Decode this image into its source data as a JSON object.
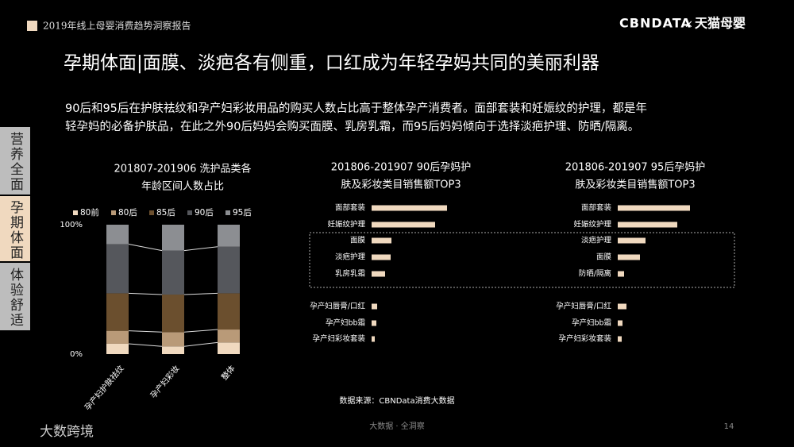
{
  "header": {
    "report": "2019年线上母婴消费趋势洞察报告",
    "brand": "CBNDATA",
    "times": "×",
    "partner": "天猫母婴"
  },
  "headline": "孕期体面|面膜、淡疤各有侧重，口红成为年轻孕妈共同的美丽利器",
  "paragraph": [
    "90后和95后在护肤祛纹和孕产妇彩妆用品的购买人数占比高于整体孕产消费者。面部套装和妊娠纹的护理，都是年",
    "轻孕妈的必备护肤品，在此之外90后妈妈会购买面膜、乳房乳霜，而95后妈妈倾向于选择淡疤护理、防晒/隔离。"
  ],
  "tabs": [
    "营养全面",
    "孕期体面",
    "体验舒适"
  ],
  "source": "数据来源：CBNData消费大数据",
  "footer": {
    "slogan": "大数据 · 全洞察",
    "page": "14",
    "logo": "大数跨境"
  },
  "chart_data": [
    {
      "type": "stacked_bar",
      "title": [
        "201807-201906 洗护品类各",
        "年龄区间人数占比"
      ],
      "categories": [
        "孕产妇护肤祛纹",
        "孕产妇彩妆",
        "整体"
      ],
      "series": [
        {
          "name": "80前",
          "color": "#f0d9bf",
          "values": [
            8,
            6,
            9
          ]
        },
        {
          "name": "80后",
          "color": "#b99a78",
          "values": [
            10,
            11,
            10
          ]
        },
        {
          "name": "85后",
          "color": "#6b4f2e",
          "values": [
            29,
            29,
            28
          ]
        },
        {
          "name": "90后",
          "color": "#55575c",
          "values": [
            38,
            34,
            36
          ]
        },
        {
          "name": "95后",
          "color": "#8c8e92",
          "values": [
            15,
            20,
            17
          ]
        }
      ],
      "ylim": [
        0,
        100
      ],
      "yticks": [
        {
          "value": 0,
          "label": "0%"
        },
        {
          "value": 100,
          "label": "100%"
        }
      ]
    },
    {
      "type": "hbar",
      "title": [
        "201806-201907 90后孕妈护",
        "肤及彩妆类目销售额TOP3"
      ],
      "categories": [
        "面部套装",
        "妊娠纹护理",
        "面膜",
        "淡疤护理",
        "乳房乳霜",
        "孕产妇唇膏/口红",
        "孕产妇bb霜",
        "孕产妇彩妆套装"
      ],
      "values": [
        95,
        80,
        25,
        24,
        17,
        7,
        6,
        4
      ],
      "color": "#f0d9bf",
      "xlim": [
        0,
        100
      ]
    },
    {
      "type": "hbar",
      "title": [
        "201806-201907 95后孕妈护",
        "肤及彩妆类目销售额TOP3"
      ],
      "categories": [
        "面部套装",
        "妊娠纹护理",
        "淡疤护理",
        "面膜",
        "防晒/隔离",
        "孕产妇唇膏/口红",
        "孕产妇bb霜",
        "孕产妇彩妆套装"
      ],
      "values": [
        91,
        75,
        35,
        28,
        8,
        11,
        6,
        5
      ],
      "color": "#f0d9bf",
      "xlim": [
        0,
        100
      ]
    }
  ]
}
